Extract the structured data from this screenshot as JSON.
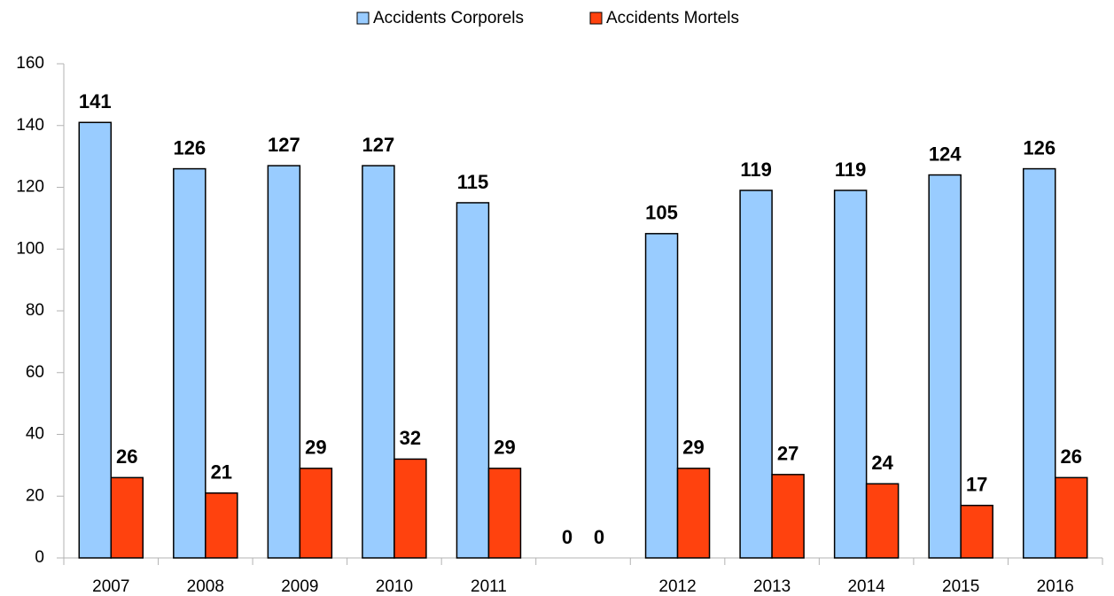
{
  "chart_data": {
    "type": "bar",
    "categories": [
      "2007",
      "2008",
      "2009",
      "2010",
      "2011",
      null,
      "2012",
      "2013",
      "2014",
      "2015",
      "2016"
    ],
    "series": [
      {
        "name": "Accidents Corporels",
        "color": "#99ccff",
        "values": [
          141,
          126,
          127,
          127,
          115,
          0,
          105,
          119,
          119,
          124,
          126
        ]
      },
      {
        "name": "Accidents Mortels",
        "color": "#ff420e",
        "values": [
          26,
          21,
          29,
          32,
          29,
          0,
          29,
          27,
          24,
          17,
          26
        ]
      }
    ],
    "ylim": [
      0,
      160
    ],
    "yticks": [
      0,
      20,
      40,
      60,
      80,
      100,
      120,
      140,
      160
    ],
    "grid": false,
    "legend": "top"
  }
}
